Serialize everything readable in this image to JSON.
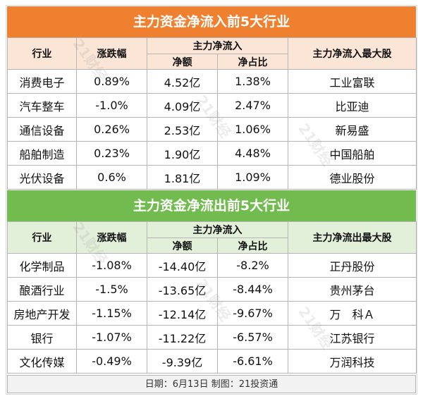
{
  "inflow": {
    "title": "主力资金净流入前5大行业",
    "headers": {
      "industry": "行业",
      "change": "涨跌幅",
      "group": "主力净流入",
      "amount": "净额",
      "ratio": "净占比",
      "top_stock": "主力净流入最大股"
    },
    "rows": [
      {
        "industry": "消费电子",
        "change": "0.89%",
        "amount": "4.52亿",
        "ratio": "1.38%",
        "stock": "工业富联"
      },
      {
        "industry": "汽车整车",
        "change": "-1.0%",
        "amount": "4.09亿",
        "ratio": "2.47%",
        "stock": "比亚迪"
      },
      {
        "industry": "通信设备",
        "change": "0.26%",
        "amount": "2.53亿",
        "ratio": "1.06%",
        "stock": "新易盛"
      },
      {
        "industry": "船舶制造",
        "change": "0.23%",
        "amount": "1.90亿",
        "ratio": "4.48%",
        "stock": "中国船舶"
      },
      {
        "industry": "光伏设备",
        "change": "0.6%",
        "amount": "1.81亿",
        "ratio": "1.09%",
        "stock": "德业股份"
      }
    ]
  },
  "outflow": {
    "title": "主力资金净流出前5大行业",
    "headers": {
      "industry": "行业",
      "change": "涨跌幅",
      "group": "主力净流入",
      "amount": "净额",
      "ratio": "净占比",
      "top_stock": "主力净流出最大股"
    },
    "rows": [
      {
        "industry": "化学制品",
        "change": "-1.08%",
        "amount": "-14.40亿",
        "ratio": "-8.2%",
        "stock": "正丹股份"
      },
      {
        "industry": "酿酒行业",
        "change": "-1.5%",
        "amount": "-13.65亿",
        "ratio": "-8.44%",
        "stock": "贵州茅台"
      },
      {
        "industry": "房地产开发",
        "change": "-1.15%",
        "amount": "-12.14亿",
        "ratio": "-9.67%",
        "stock": "万　科Ａ"
      },
      {
        "industry": "银行",
        "change": "-1.07%",
        "amount": "-11.22亿",
        "ratio": "-6.57%",
        "stock": "江苏银行"
      },
      {
        "industry": "文化传媒",
        "change": "-0.49%",
        "amount": "-9.39亿",
        "ratio": "-6.61%",
        "stock": "万润科技"
      }
    ]
  },
  "footer": "日期：6月13日 制图：21投资通",
  "watermark": "21财经",
  "colors": {
    "inflow_banner": "#ef8030",
    "inflow_header": "#fbe5d6",
    "outflow_banner": "#72bb4f",
    "outflow_header": "#e2efd9"
  }
}
